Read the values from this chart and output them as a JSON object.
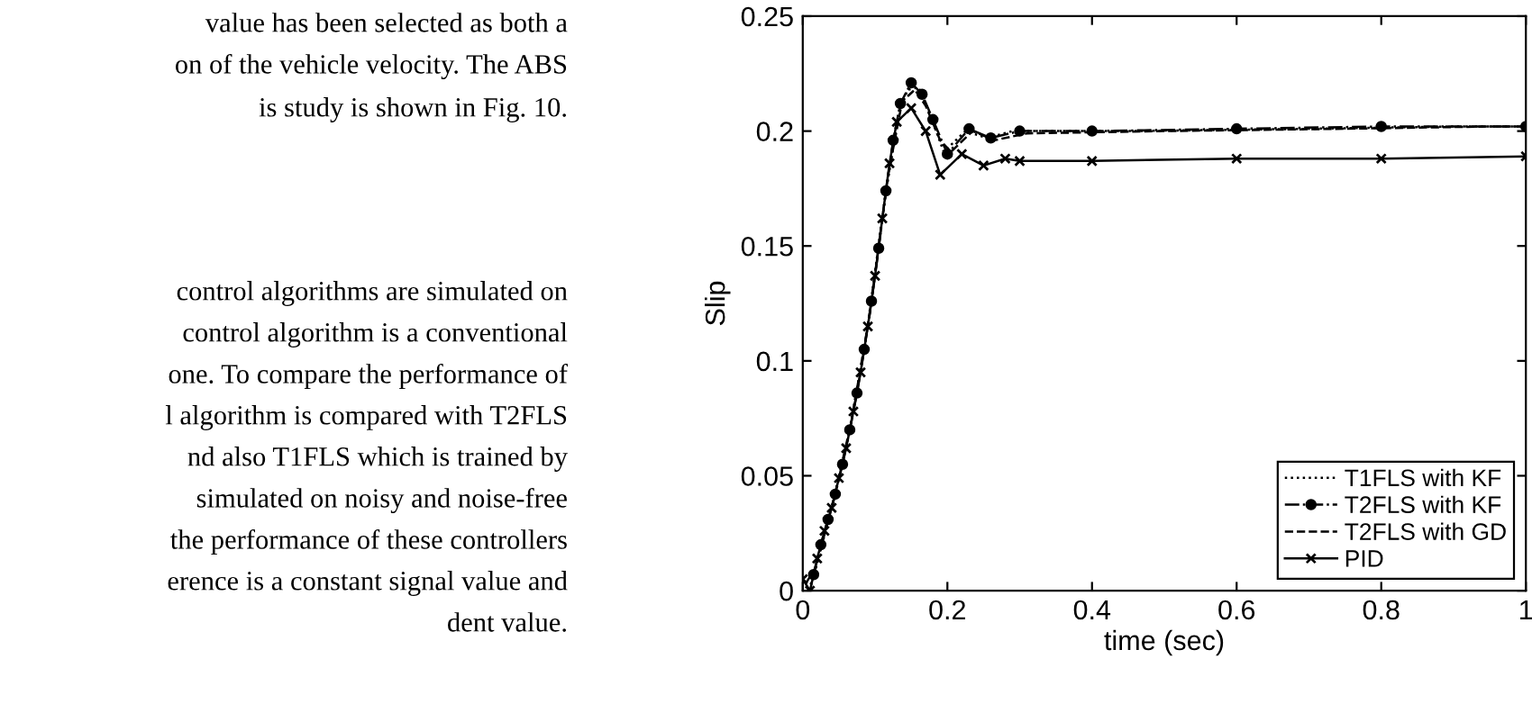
{
  "chart_data": {
    "type": "line",
    "xlabel": "time (sec)",
    "ylabel": "Slip",
    "xlim": [
      0,
      1
    ],
    "ylim": [
      0,
      0.25
    ],
    "xticks": [
      0,
      0.2,
      0.4,
      0.6,
      0.8,
      1
    ],
    "yticks": [
      0,
      0.05,
      0.1,
      0.15,
      0.2,
      0.25
    ],
    "grid": false,
    "legend": "bottom right",
    "annotations": [
      "value has been selected as both a",
      "on of the vehicle velocity. The ABS",
      "is study is shown in Fig. 10.",
      "control algorithms are simulated on",
      "control algorithm is a conventional",
      "one. To compare the performance of",
      "l algorithm is compared with T2FLS",
      "nd also T1FLS which is trained by",
      "simulated on noisy and noise-free",
      "the performance of these controllers",
      "erence is a constant signal value and",
      "dent value."
    ],
    "series": [
      {
        "name": "T1FLS with KF",
        "color": "#000000",
        "line_style": "dotted",
        "marker": "none",
        "x": [
          0.002,
          0.0125,
          0.0375,
          0.0625,
          0.0875,
          0.1125,
          0.1325,
          0.145,
          0.16,
          0.175,
          0.195,
          0.225,
          0.255,
          0.29,
          0.45,
          0.7,
          0.9,
          0.998
        ],
        "values": [
          0.004,
          0.003,
          0.033,
          0.066,
          0.11,
          0.168,
          0.208,
          0.218,
          0.219,
          0.208,
          0.191,
          0.2,
          0.197,
          0.2,
          0.2,
          0.201,
          0.202,
          0.202
        ]
      },
      {
        "name": "T2FLS with KF",
        "color": "#000000",
        "line_style": "dashdot",
        "marker": "circle",
        "x": [
          0.015,
          0.025,
          0.035,
          0.045,
          0.055,
          0.065,
          0.075,
          0.085,
          0.095,
          0.105,
          0.115,
          0.125,
          0.135,
          0.15,
          0.165,
          0.18,
          0.2,
          0.23,
          0.26,
          0.3,
          0.4,
          0.6,
          0.8,
          1
        ],
        "values": [
          0.007,
          0.02,
          0.031,
          0.042,
          0.055,
          0.07,
          0.086,
          0.105,
          0.126,
          0.149,
          0.174,
          0.196,
          0.212,
          0.221,
          0.216,
          0.205,
          0.19,
          0.201,
          0.197,
          0.2,
          0.2,
          0.201,
          0.202,
          0.202
        ]
      },
      {
        "name": "T2FLS with GD",
        "color": "#000000",
        "line_style": "dashed",
        "marker": "none",
        "x": [
          0.004,
          0.0175,
          0.0425,
          0.0675,
          0.0925,
          0.1175,
          0.1375,
          0.155,
          0.17,
          0.19,
          0.205,
          0.235,
          0.265,
          0.31,
          0.5,
          0.75,
          0.95,
          0.997
        ],
        "values": [
          0.003,
          0.01,
          0.039,
          0.074,
          0.12,
          0.18,
          0.213,
          0.218,
          0.211,
          0.196,
          0.191,
          0.2,
          0.196,
          0.199,
          0.2,
          0.201,
          0.202,
          0.202
        ]
      },
      {
        "name": "PID",
        "color": "#000000",
        "line_style": "solid",
        "marker": "cross",
        "x": [
          0,
          0.01,
          0.02,
          0.03,
          0.04,
          0.05,
          0.06,
          0.07,
          0.08,
          0.09,
          0.1,
          0.11,
          0.12,
          0.13,
          0.15,
          0.17,
          0.19,
          0.22,
          0.25,
          0.28,
          0.3,
          0.4,
          0.6,
          0.8,
          1
        ],
        "values": [
          0.005,
          0,
          0.014,
          0.026,
          0.036,
          0.049,
          0.062,
          0.078,
          0.095,
          0.115,
          0.137,
          0.162,
          0.186,
          0.204,
          0.21,
          0.2,
          0.181,
          0.19,
          0.185,
          0.188,
          0.187,
          0.187,
          0.188,
          0.188,
          0.189
        ]
      }
    ]
  }
}
